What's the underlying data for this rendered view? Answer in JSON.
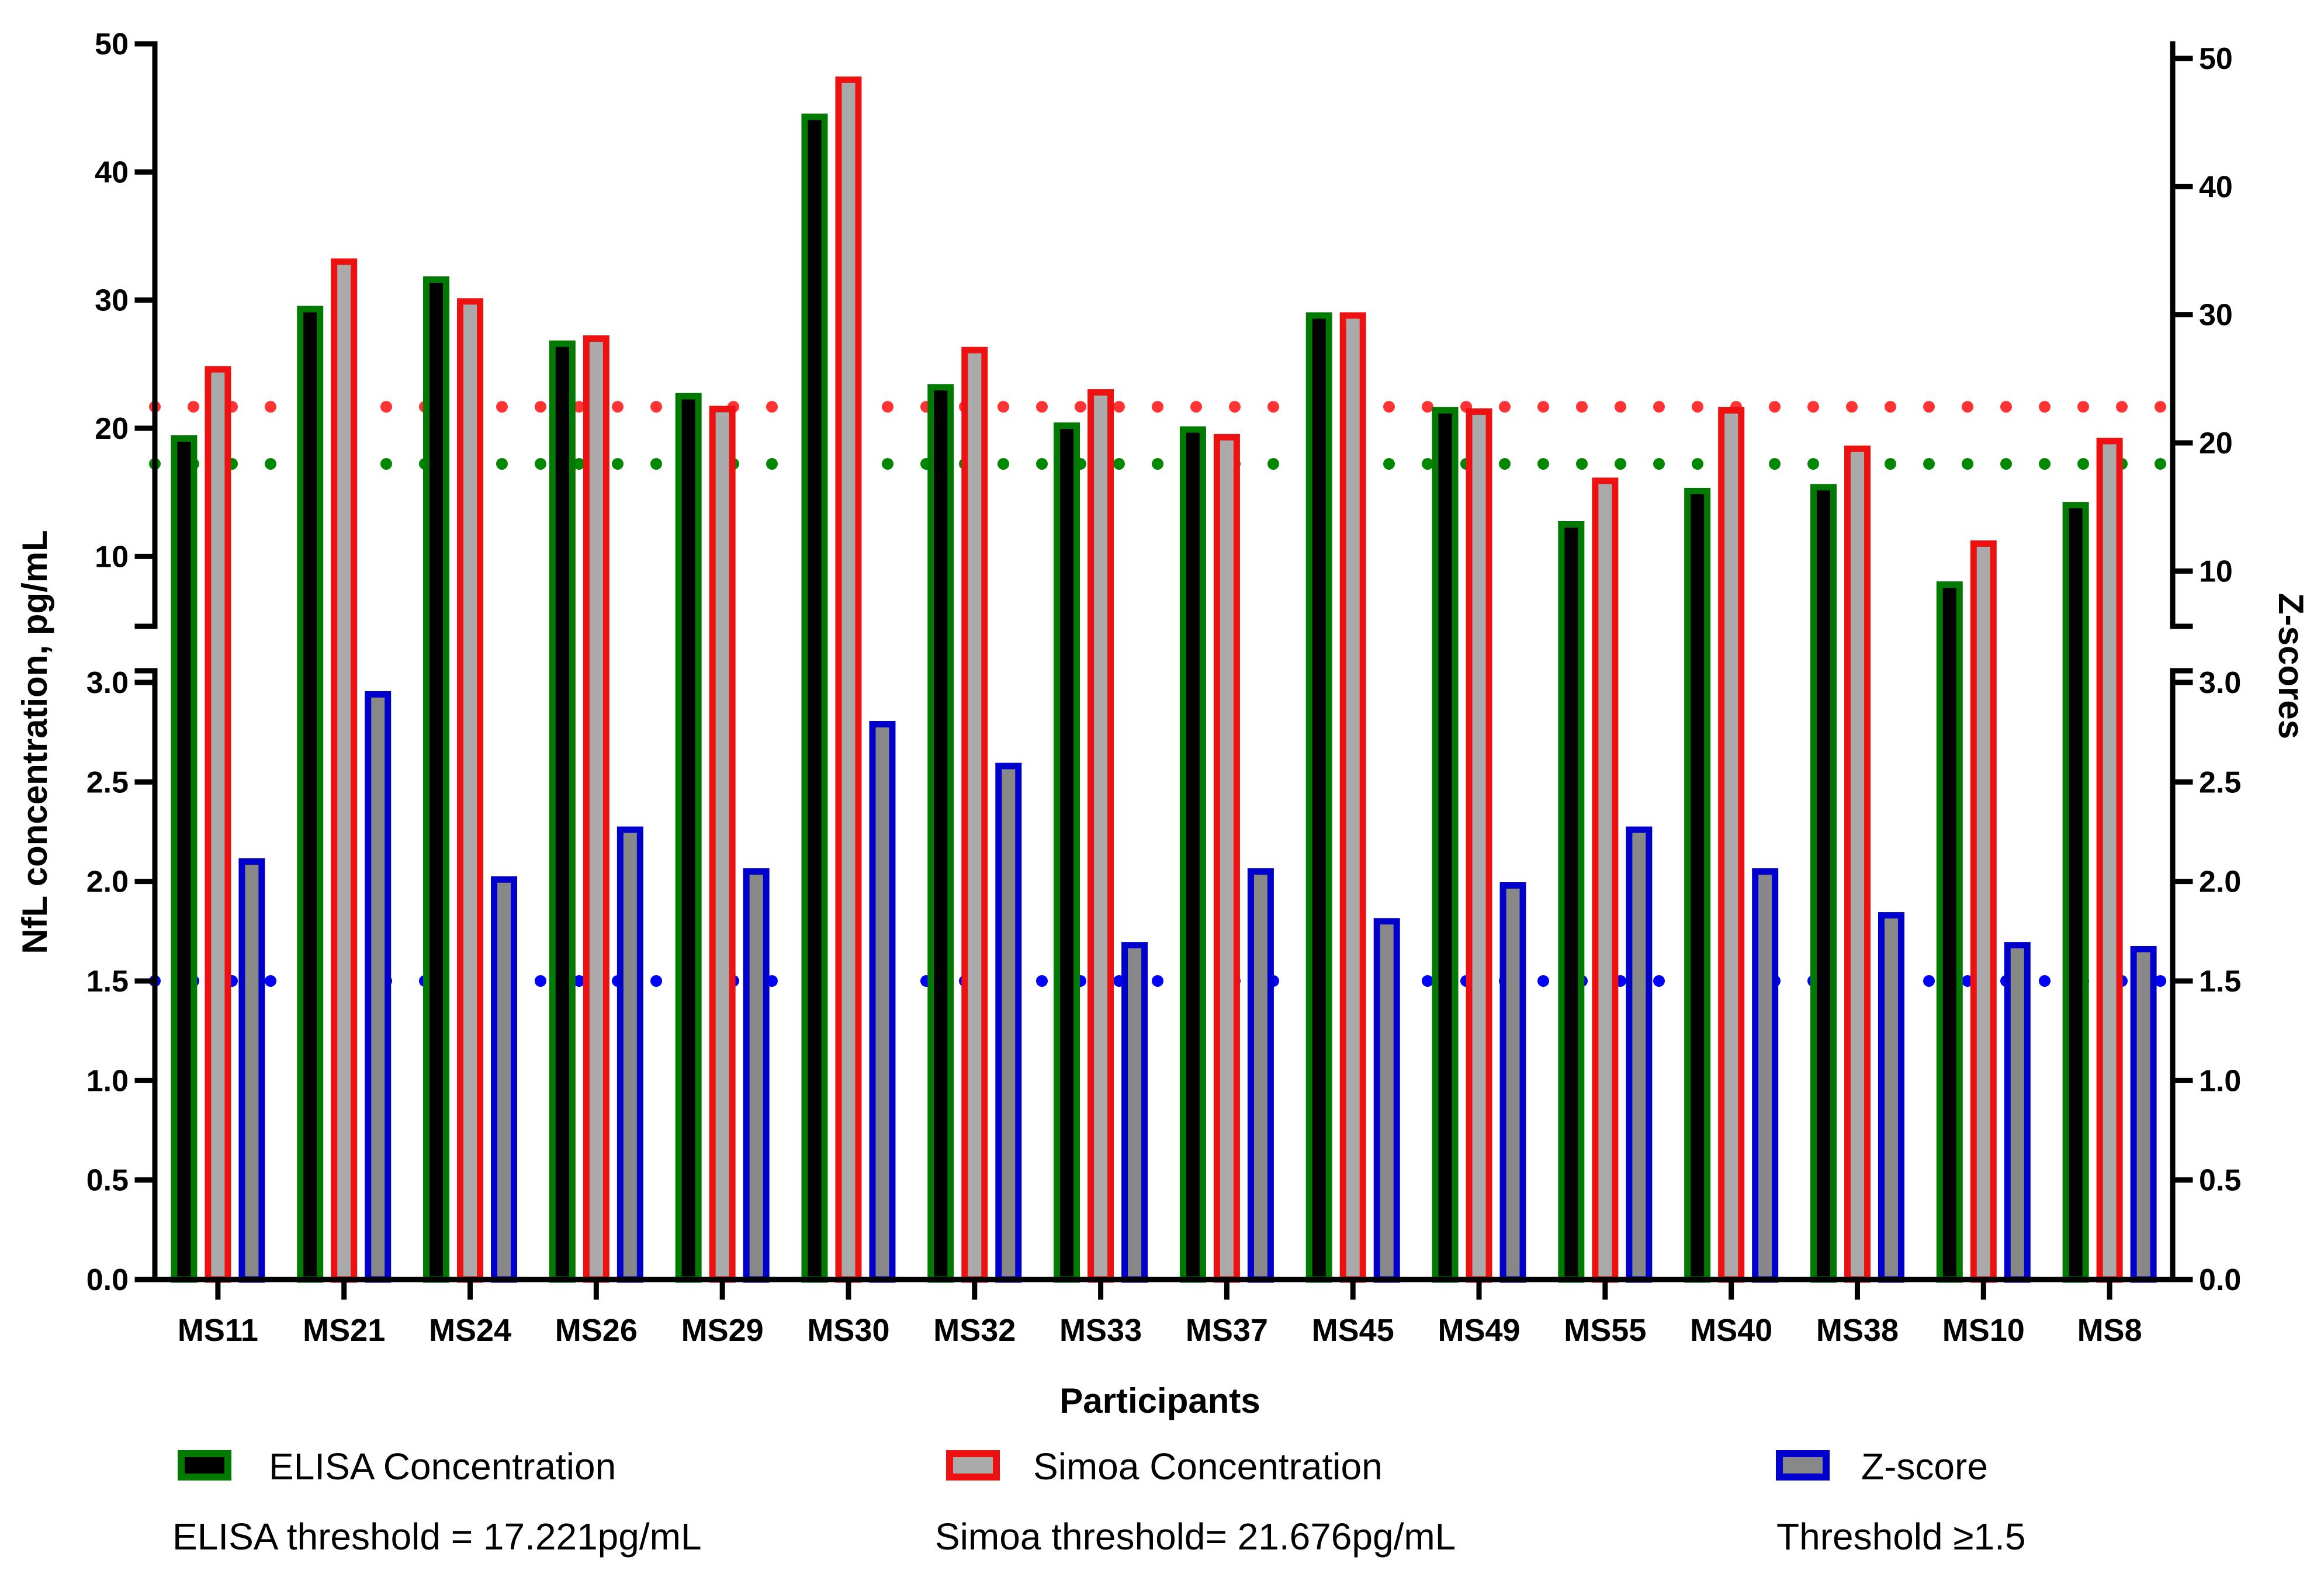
{
  "chart_data": {
    "type": "bar",
    "xlabel": "Participants",
    "ylabel_left": "NfL concentration, pg/mL",
    "ylabel_right": "Z-scores",
    "categories": [
      "MS11",
      "MS21",
      "MS24",
      "MS26",
      "MS29",
      "MS30",
      "MS32",
      "MS33",
      "MS37",
      "MS45",
      "MS49",
      "MS55",
      "MS40",
      "MS38",
      "MS10",
      "MS8"
    ],
    "series": [
      {
        "name": "ELISA Concentration",
        "axis": "concentration",
        "values": [
          19.2,
          29.3,
          31.6,
          26.6,
          22.5,
          44.3,
          23.2,
          20.2,
          19.9,
          28.8,
          21.4,
          12.5,
          15.1,
          15.4,
          7.8,
          14.0
        ],
        "color": "#007a00",
        "inner": "#000000"
      },
      {
        "name": "Simoa Concentration",
        "axis": "concentration",
        "values": [
          24.6,
          33.0,
          29.9,
          27.0,
          21.5,
          47.2,
          26.1,
          22.8,
          19.3,
          28.8,
          21.3,
          15.9,
          21.4,
          18.4,
          11.0,
          19.0
        ],
        "color": "#ee1111",
        "inner": "#aaaaaa"
      },
      {
        "name": "Z-score",
        "axis": "zscore",
        "values": [
          2.1,
          2.94,
          2.01,
          2.26,
          2.05,
          2.79,
          2.58,
          1.68,
          2.05,
          1.8,
          1.98,
          2.26,
          2.05,
          1.83,
          1.68,
          1.66
        ],
        "color": "#0000cc",
        "inner": "#888888"
      }
    ],
    "thresholds": [
      {
        "name": "ELISA threshold",
        "axis": "concentration",
        "value": 17.221,
        "color": "#008800"
      },
      {
        "name": "Simoa threshold",
        "axis": "concentration",
        "value": 21.676,
        "color": "#ff3333"
      },
      {
        "name": "Z-score threshold",
        "axis": "zscore",
        "value": 1.5,
        "color": "#0000ff"
      }
    ],
    "y_axis": {
      "lower_segment_range": [
        0,
        3.0
      ],
      "upper_segment_range": [
        5,
        50
      ],
      "lower_ticks": [
        "0.0",
        "0.5",
        "1.0",
        "1.5",
        "2.0",
        "2.5",
        "3.0"
      ],
      "upper_ticks": [
        "10",
        "20",
        "30",
        "40",
        "50"
      ],
      "right_upper_ticks": [
        "10",
        "20",
        "30",
        "40",
        "50"
      ]
    },
    "legend": [
      {
        "label": "ELISA Concentration",
        "note": "ELISA threshold = 17.221pg/mL"
      },
      {
        "label": "Simoa Concentration",
        "note": "Simoa threshold= 21.676pg/mL"
      },
      {
        "label": "Z-score",
        "note": "Threshold ≥1.5"
      }
    ],
    "legend_position": "bottom"
  }
}
